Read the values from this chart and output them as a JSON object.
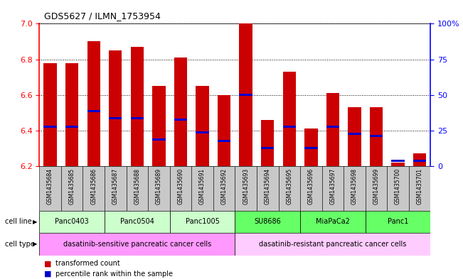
{
  "title": "GDS5627 / ILMN_1753954",
  "samples": [
    "GSM1435684",
    "GSM1435685",
    "GSM1435686",
    "GSM1435687",
    "GSM1435688",
    "GSM1435689",
    "GSM1435690",
    "GSM1435691",
    "GSM1435692",
    "GSM1435693",
    "GSM1435694",
    "GSM1435695",
    "GSM1435696",
    "GSM1435697",
    "GSM1435698",
    "GSM1435699",
    "GSM1435700",
    "GSM1435701"
  ],
  "bar_values": [
    6.78,
    6.78,
    6.9,
    6.85,
    6.87,
    6.65,
    6.81,
    6.65,
    6.6,
    7.0,
    6.46,
    6.73,
    6.41,
    6.61,
    6.53,
    6.53,
    6.22,
    6.27
  ],
  "percentile_values": [
    6.42,
    6.42,
    6.51,
    6.47,
    6.47,
    6.35,
    6.46,
    6.39,
    6.34,
    6.6,
    6.3,
    6.42,
    6.3,
    6.42,
    6.38,
    6.37,
    6.23,
    6.23
  ],
  "ylim_left": [
    6.2,
    7.0
  ],
  "ylim_right": [
    0,
    100
  ],
  "yticks_left": [
    6.2,
    6.4,
    6.6,
    6.8,
    7.0
  ],
  "yticks_right": [
    0,
    25,
    50,
    75,
    100
  ],
  "ytick_right_labels": [
    "0",
    "25",
    "50",
    "75",
    "100%"
  ],
  "cell_line_groups": [
    {
      "label": "Panc0403",
      "start": 0,
      "end": 2,
      "color": "#ccffcc"
    },
    {
      "label": "Panc0504",
      "start": 3,
      "end": 5,
      "color": "#ccffcc"
    },
    {
      "label": "Panc1005",
      "start": 6,
      "end": 8,
      "color": "#ccffcc"
    },
    {
      "label": "SU8686",
      "start": 9,
      "end": 11,
      "color": "#66ff66"
    },
    {
      "label": "MiaPaCa2",
      "start": 12,
      "end": 14,
      "color": "#66ff66"
    },
    {
      "label": "Panc1",
      "start": 15,
      "end": 17,
      "color": "#66ff66"
    }
  ],
  "cell_type_groups": [
    {
      "label": "dasatinib-sensitive pancreatic cancer cells",
      "start": 0,
      "end": 8,
      "color": "#ff99ff"
    },
    {
      "label": "dasatinib-resistant pancreatic cancer cells",
      "start": 9,
      "end": 17,
      "color": "#ffccff"
    }
  ],
  "bar_color": "#cc0000",
  "percentile_color": "#0000cc",
  "bar_width": 0.6,
  "label_row_color": "#c8c8c8",
  "fig_width": 6.51,
  "fig_height": 3.93
}
